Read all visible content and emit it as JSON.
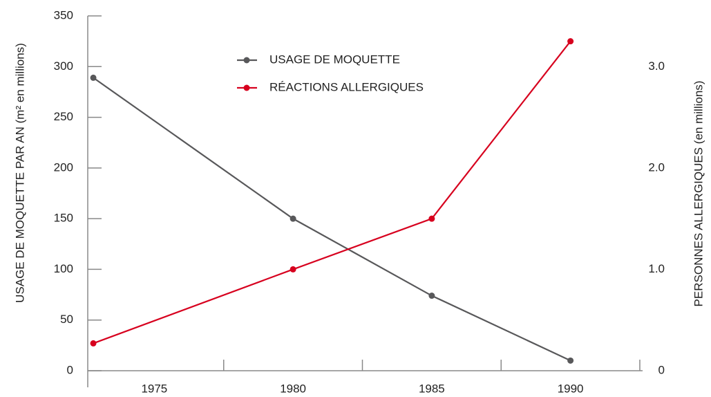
{
  "chart_data": {
    "type": "line",
    "xlabel": null,
    "ylabel": "USAGE DE MOQUETTE PAR AN (m² en millions)",
    "y2label": "PERSONNES ALLERGIQUES  (en millions)",
    "x": [
      1972.8,
      1980,
      1985,
      1990
    ],
    "series": [
      {
        "name": "USAGE DE MOQUETTE",
        "color": "#58585a",
        "values": [
          289,
          150,
          74,
          10
        ]
      },
      {
        "name": "RÉACTIONS ALLERGIQUES",
        "color": "#d7001e",
        "axis": "y2",
        "values": [
          0.27,
          1.0,
          1.5,
          3.25
        ]
      }
    ],
    "xlim": [
      1972.6,
      1992.6
    ],
    "xticks": [
      1975,
      1980,
      1985,
      1990
    ],
    "xminorticks": [
      1977.5,
      1982.5,
      1987.5,
      1992.5
    ],
    "ylim": [
      0,
      350
    ],
    "yticks": [
      0,
      50,
      100,
      150,
      200,
      250,
      300,
      350
    ],
    "y2lim": [
      0,
      3.5
    ],
    "y2ticks": [
      0,
      {
        "value": 1,
        "label": "1.0"
      },
      {
        "value": 2,
        "label": "2.0"
      },
      {
        "value": 3,
        "label": "3.0"
      }
    ],
    "legend": "top"
  }
}
